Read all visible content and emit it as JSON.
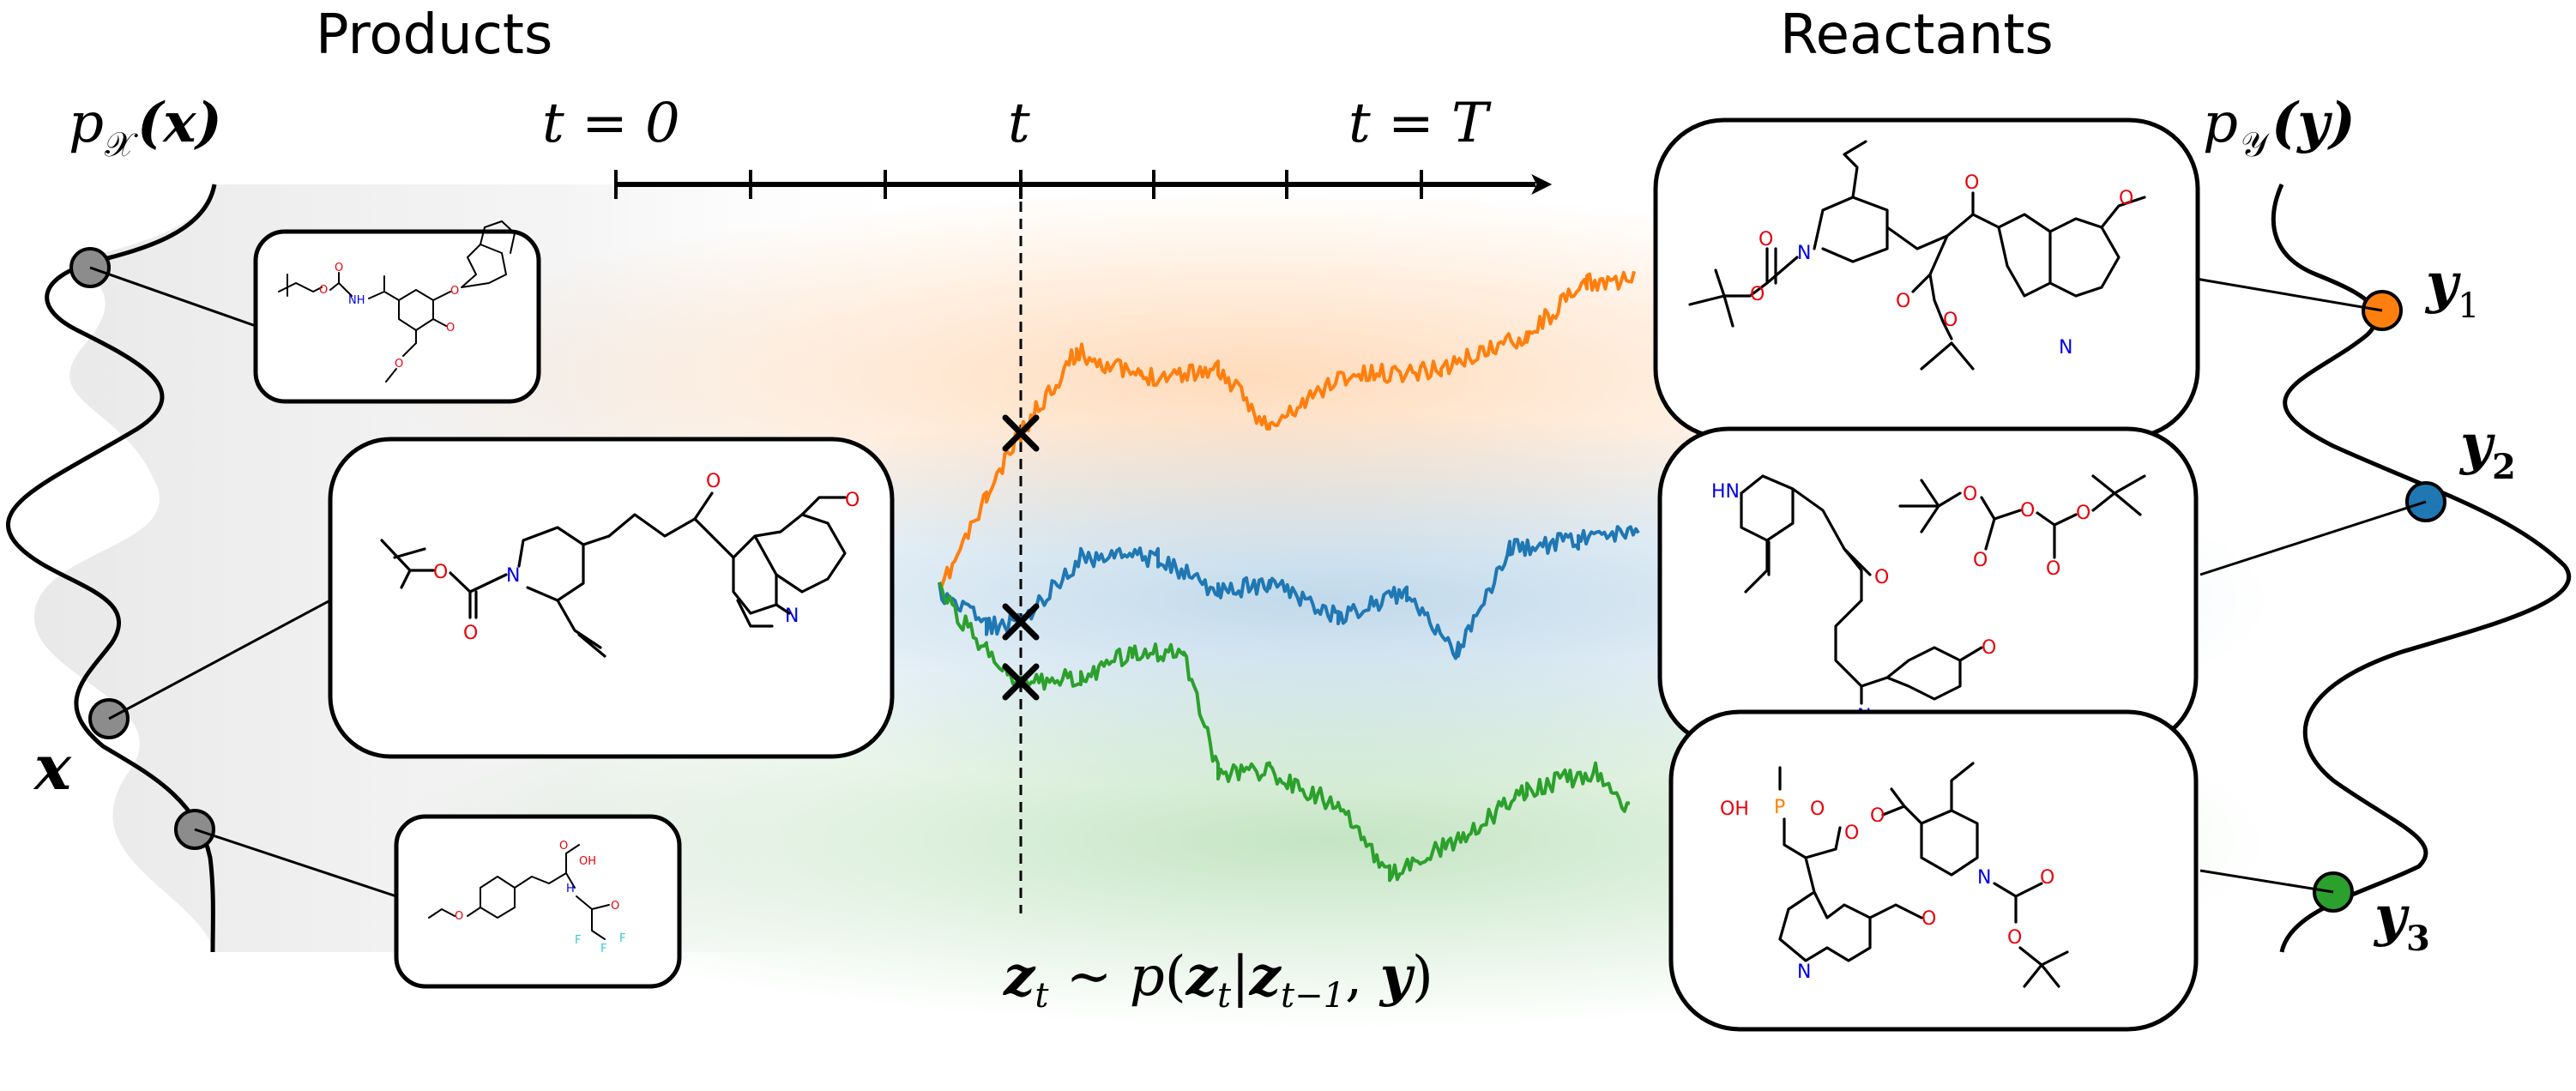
{
  "labels": {
    "products_title": "Products",
    "reactants_title": "Reactants",
    "px_label": "p",
    "px_sub": "𝒳",
    "px_arg": "(x)",
    "py_label": "p",
    "py_sub": "𝒴",
    "py_arg": "(y)",
    "x_label": "x",
    "time_start": "t = 0",
    "time_mid": "t",
    "time_end": "t = T",
    "transition": "zt ∼ p(zt|zt−1, y)",
    "y1": "y",
    "y1_sub": "1",
    "y2": "y",
    "y2_sub": "2",
    "y3": "y",
    "y3_sub": "3"
  },
  "atoms": {
    "N": "N",
    "O": "O",
    "H": "H",
    "NH": "NH",
    "HN": "HN",
    "OH": "OH",
    "OHs": "OH",
    "P": "P",
    "F": "F"
  },
  "colors": {
    "orange": "#ff7f0e",
    "blue": "#1f77b4",
    "green": "#2ca02c",
    "gray_node": "#8c8c8c",
    "oxygen": "#e8000b",
    "nitrogen": "#0000e6",
    "phosphorus": "#ff8000",
    "fluorine": "#33cccc"
  }
}
